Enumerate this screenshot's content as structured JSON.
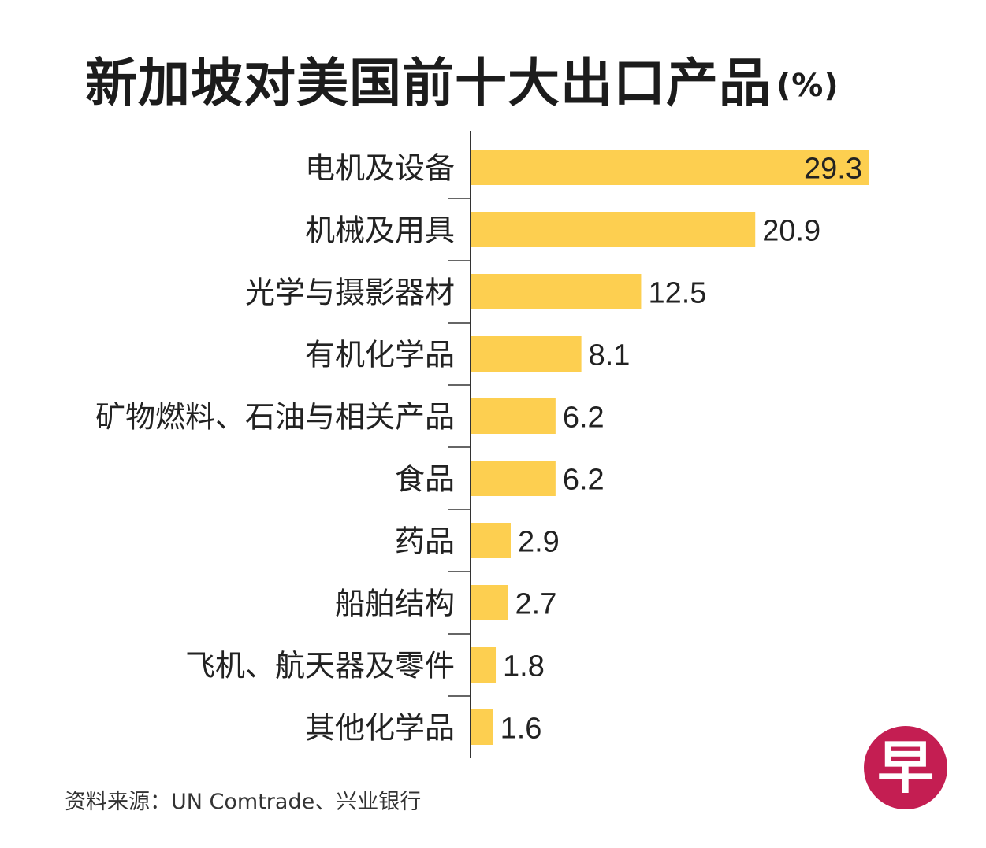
{
  "chart_data": {
    "type": "bar",
    "orientation": "horizontal",
    "title": "新加坡对美国前十大出口产品",
    "title_unit": "(%)",
    "categories": [
      "电机及设备",
      "机械及用具",
      "光学与摄影器材",
      "有机化学品",
      "矿物燃料、石油与相关产品",
      "食品",
      "药品",
      "船舶结构",
      "飞机、航天器及零件",
      "其他化学品"
    ],
    "values": [
      29.3,
      20.9,
      12.5,
      8.1,
      6.2,
      6.2,
      2.9,
      2.7,
      1.8,
      1.6
    ],
    "value_labels": [
      "29.3",
      "20.9",
      "12.5",
      "8.1",
      "6.2",
      "6.2",
      "2.9",
      "2.7",
      "1.8",
      "1.6"
    ],
    "xlim": [
      0,
      29.3
    ],
    "xlabel": "",
    "ylabel": "",
    "grid": false,
    "bar_color": "#fdcf50",
    "axis_color": "#333333"
  },
  "source": "资料来源：UN Comtrade、兴业银行",
  "logo": {
    "text": "早",
    "color": "#c41e52"
  }
}
